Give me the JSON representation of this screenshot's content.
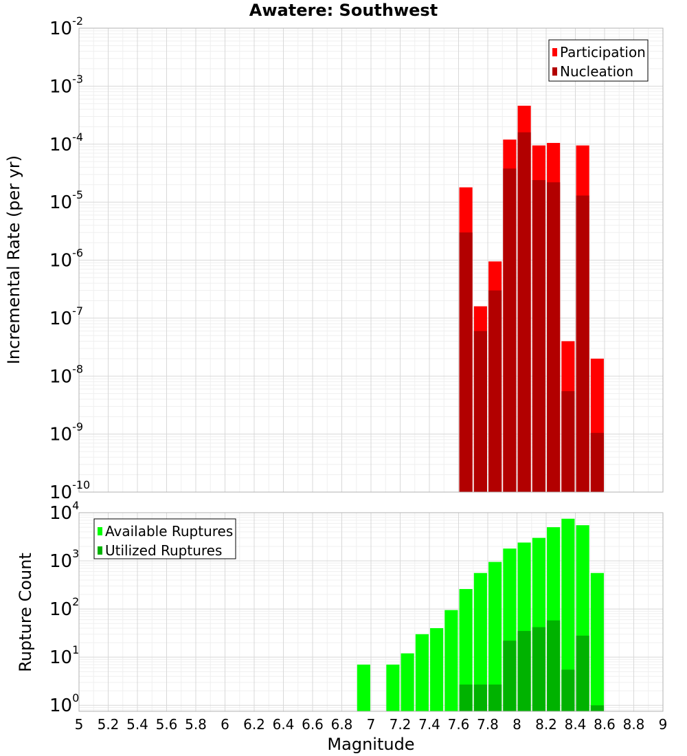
{
  "chart_data": [
    {
      "type": "bar",
      "title": "Awatere: Southwest",
      "xlabel": "",
      "ylabel": "Incremental Rate (per yr)",
      "xlim": [
        5,
        9
      ],
      "ylim": [
        1e-10,
        0.01
      ],
      "yscale": "log",
      "y_tick_exponents": [
        -10,
        -9,
        -8,
        -7,
        -6,
        -5,
        -4,
        -3,
        -2
      ],
      "grid": true,
      "legend": {
        "placement": "top-right",
        "entries": [
          "Participation",
          "Nucleation"
        ]
      },
      "colors": {
        "Participation": "#ff0000",
        "Nucleation": "#b20000"
      },
      "x": [
        7.65,
        7.75,
        7.85,
        7.95,
        8.05,
        8.15,
        8.25,
        8.35,
        8.45,
        8.55
      ],
      "series": [
        {
          "name": "Participation",
          "values": [
            1.8e-05,
            1.6e-07,
            9.5e-07,
            0.00012,
            0.00046,
            9.5e-05,
            0.000105,
            4e-08,
            9.5e-05,
            2e-08
          ]
        },
        {
          "name": "Nucleation",
          "values": [
            3e-06,
            6e-08,
            3e-07,
            3.8e-05,
            0.00016,
            2.4e-05,
            2.2e-05,
            5.5e-09,
            1.3e-05,
            1.05e-09
          ]
        }
      ]
    },
    {
      "type": "bar",
      "title": "",
      "xlabel": "Magnitude",
      "ylabel": "Rupture Count",
      "xlim": [
        5,
        9
      ],
      "ylim": [
        0.75,
        10000
      ],
      "yscale": "log",
      "y_tick_exponents": [
        0,
        1,
        2,
        3,
        4
      ],
      "x_ticks": [
        "5",
        "5.2",
        "5.4",
        "5.6",
        "5.8",
        "6",
        "6.2",
        "6.4",
        "6.6",
        "6.8",
        "7",
        "7.2",
        "7.4",
        "7.6",
        "7.8",
        "8",
        "8.2",
        "8.4",
        "8.6",
        "8.8",
        "9"
      ],
      "grid": true,
      "legend": {
        "placement": "top-left",
        "entries": [
          "Available Ruptures",
          "Utilized Ruptures"
        ]
      },
      "colors": {
        "Available Ruptures": "#00ff00",
        "Utilized Ruptures": "#00b200"
      },
      "x": [
        6.95,
        7.15,
        7.25,
        7.35,
        7.45,
        7.55,
        7.65,
        7.75,
        7.85,
        7.95,
        8.05,
        8.15,
        8.25,
        8.35,
        8.45,
        8.55
      ],
      "series": [
        {
          "name": "Available Ruptures",
          "values": [
            7,
            7,
            12,
            30,
            40,
            95,
            260,
            560,
            950,
            1800,
            2400,
            3000,
            5000,
            7500,
            5500,
            560
          ]
        },
        {
          "name": "Utilized Ruptures",
          "values": [
            null,
            null,
            null,
            null,
            null,
            null,
            2.7,
            2.7,
            2.7,
            22,
            35,
            42,
            58,
            5.5,
            28,
            1
          ]
        }
      ]
    }
  ]
}
